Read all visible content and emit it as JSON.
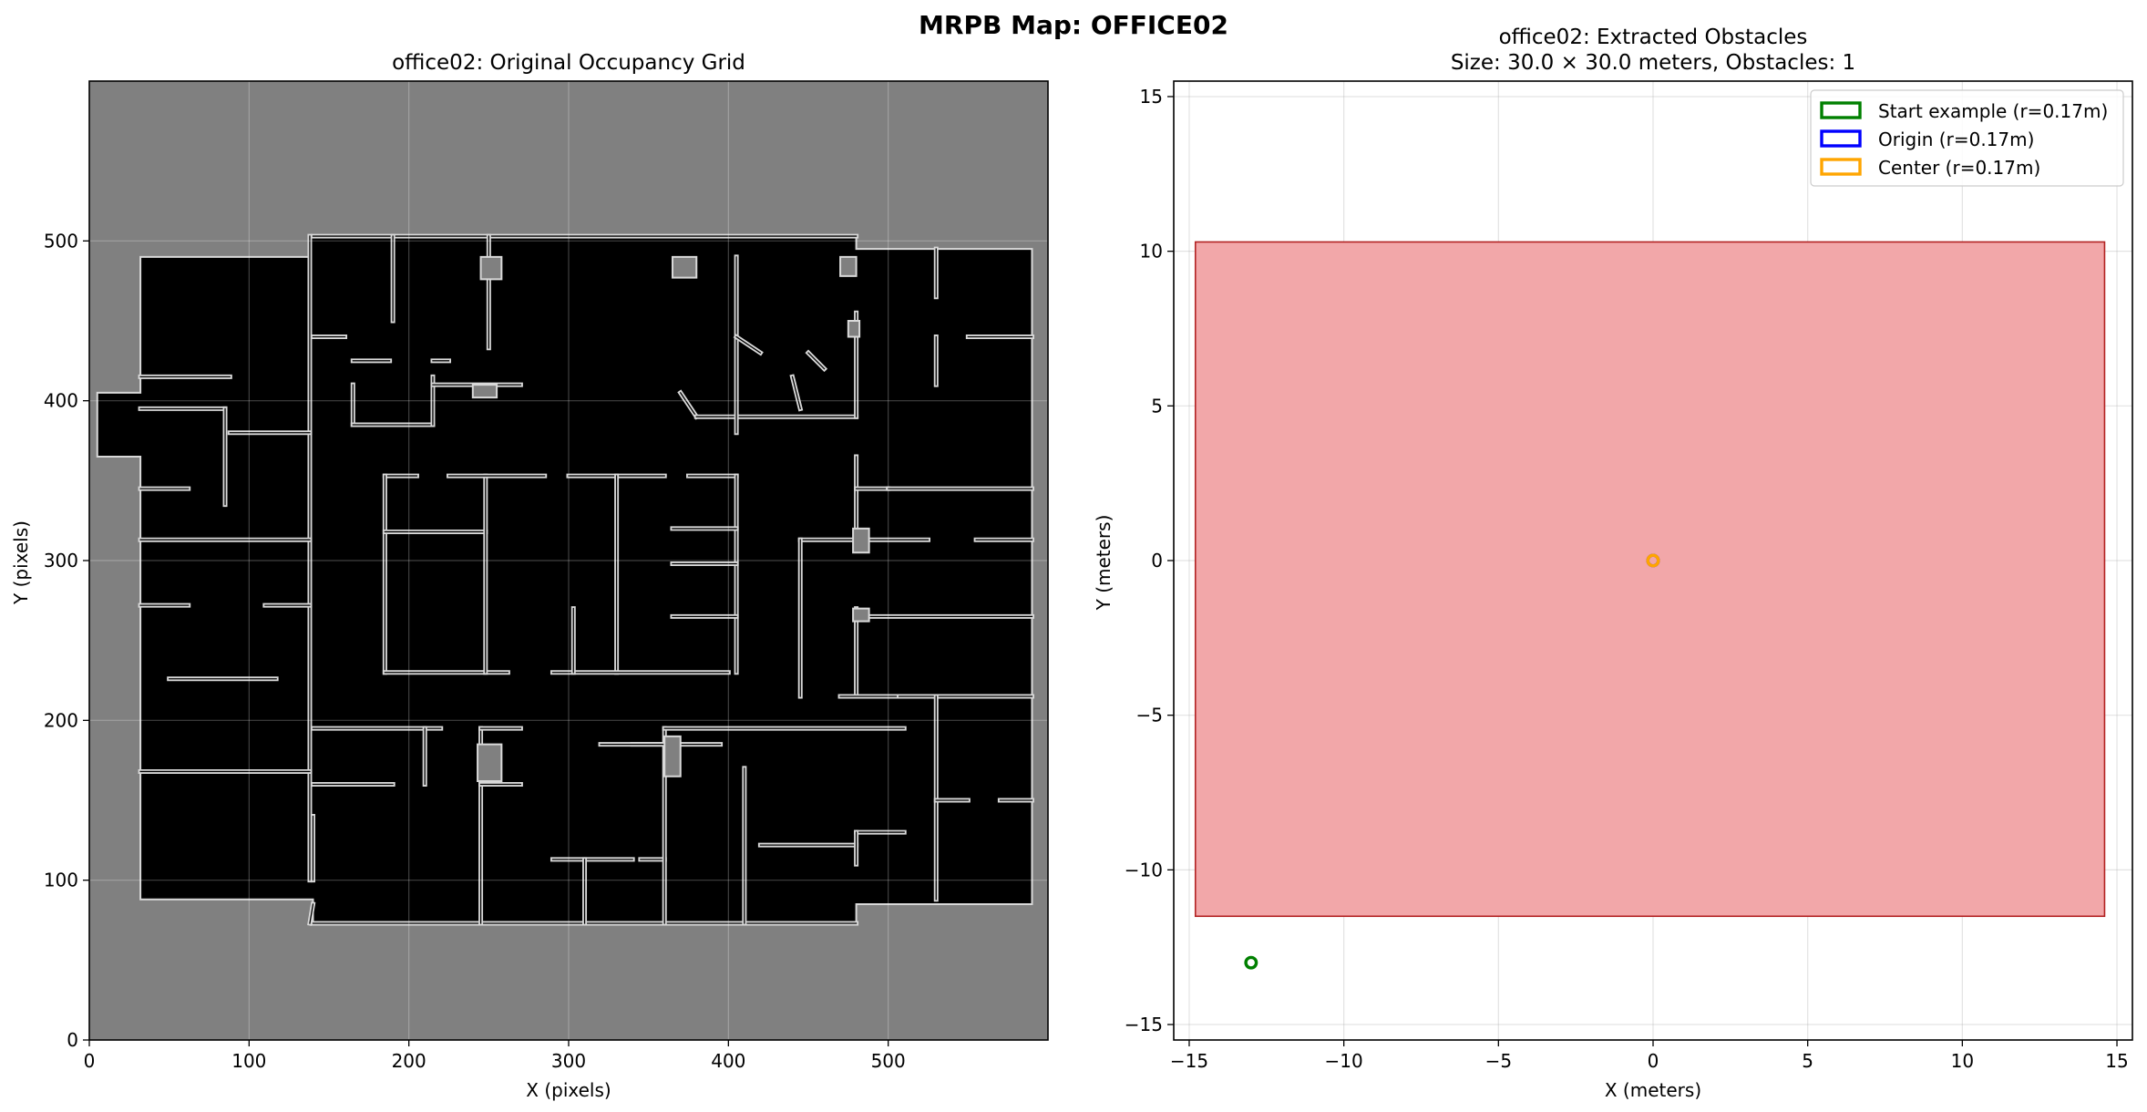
{
  "figure": {
    "suptitle": "MRPB Map: OFFICE02"
  },
  "colors": {
    "grid_unknown": "#808080",
    "grid_free": "#000000",
    "grid_wall": "#d9d9d9",
    "obstacle_fill": "#f2a7a9",
    "obstacle_edge": "#b22222",
    "start": "#008000",
    "origin": "#0000ff",
    "center": "#ffa500"
  },
  "chart_data": [
    {
      "type": "heatmap",
      "title": "office02: Original Occupancy Grid",
      "xlabel": "X (pixels)",
      "ylabel": "Y (pixels)",
      "xlim": [
        0,
        600
      ],
      "ylim": [
        0,
        600
      ],
      "xticks": [
        0,
        100,
        200,
        300,
        400,
        500
      ],
      "yticks": [
        0,
        100,
        200,
        300,
        400,
        500
      ],
      "grid": true,
      "free_space_outline": [
        [
          32,
          490
        ],
        [
          32,
          405
        ],
        [
          5,
          405
        ],
        [
          5,
          365
        ],
        [
          32,
          365
        ],
        [
          32,
          88
        ],
        [
          140,
          88
        ],
        [
          140,
          73
        ],
        [
          480,
          73
        ],
        [
          480,
          85
        ],
        [
          590,
          85
        ],
        [
          590,
          495
        ],
        [
          480,
          495
        ],
        [
          480,
          503
        ],
        [
          138,
          503
        ],
        [
          138,
          490
        ]
      ],
      "walls": [
        [
          [
            138,
            100
          ],
          [
            138,
            503
          ]
        ],
        [
          [
            140,
            503
          ],
          [
            480,
            503
          ]
        ],
        [
          [
            32,
            395
          ],
          [
            85,
            395
          ]
        ],
        [
          [
            32,
            415
          ],
          [
            88,
            415
          ]
        ],
        [
          [
            85,
            395
          ],
          [
            85,
            335
          ]
        ],
        [
          [
            88,
            380
          ],
          [
            138,
            380
          ]
        ],
        [
          [
            32,
            345
          ],
          [
            62,
            345
          ]
        ],
        [
          [
            32,
            313
          ],
          [
            138,
            313
          ]
        ],
        [
          [
            32,
            272
          ],
          [
            62,
            272
          ]
        ],
        [
          [
            110,
            272
          ],
          [
            138,
            272
          ]
        ],
        [
          [
            50,
            226
          ],
          [
            117,
            226
          ]
        ],
        [
          [
            32,
            168
          ],
          [
            138,
            168
          ]
        ],
        [
          [
            140,
            160
          ],
          [
            190,
            160
          ]
        ],
        [
          [
            140,
            195
          ],
          [
            220,
            195
          ]
        ],
        [
          [
            210,
            195
          ],
          [
            210,
            160
          ]
        ],
        [
          [
            190,
            450
          ],
          [
            190,
            503
          ]
        ],
        [
          [
            140,
            440
          ],
          [
            160,
            440
          ]
        ],
        [
          [
            165,
            410
          ],
          [
            165,
            385
          ]
        ],
        [
          [
            165,
            425
          ],
          [
            188,
            425
          ]
        ],
        [
          [
            165,
            385
          ],
          [
            215,
            385
          ]
        ],
        [
          [
            215,
            425
          ],
          [
            225,
            425
          ]
        ],
        [
          [
            215,
            385
          ],
          [
            215,
            415
          ]
        ],
        [
          [
            215,
            410
          ],
          [
            270,
            410
          ]
        ],
        [
          [
            250,
            433
          ],
          [
            250,
            503
          ]
        ],
        [
          [
            185,
            353
          ],
          [
            205,
            353
          ]
        ],
        [
          [
            185,
            353
          ],
          [
            185,
            230
          ]
        ],
        [
          [
            185,
            230
          ],
          [
            262,
            230
          ]
        ],
        [
          [
            185,
            318
          ],
          [
            248,
            318
          ]
        ],
        [
          [
            248,
            353
          ],
          [
            248,
            230
          ]
        ],
        [
          [
            225,
            353
          ],
          [
            285,
            353
          ]
        ],
        [
          [
            300,
            353
          ],
          [
            360,
            353
          ]
        ],
        [
          [
            330,
            353
          ],
          [
            330,
            230
          ]
        ],
        [
          [
            290,
            230
          ],
          [
            400,
            230
          ]
        ],
        [
          [
            375,
            353
          ],
          [
            405,
            353
          ]
        ],
        [
          [
            405,
            353
          ],
          [
            405,
            230
          ]
        ],
        [
          [
            365,
            320
          ],
          [
            405,
            320
          ]
        ],
        [
          [
            365,
            298
          ],
          [
            405,
            298
          ]
        ],
        [
          [
            365,
            265
          ],
          [
            405,
            265
          ]
        ],
        [
          [
            303,
            270
          ],
          [
            303,
            230
          ]
        ],
        [
          [
            370,
            405
          ],
          [
            380,
            390
          ]
        ],
        [
          [
            380,
            390
          ],
          [
            480,
            390
          ]
        ],
        [
          [
            405,
            490
          ],
          [
            405,
            380
          ]
        ],
        [
          [
            405,
            440
          ],
          [
            420,
            430
          ]
        ],
        [
          [
            450,
            430
          ],
          [
            460,
            420
          ]
        ],
        [
          [
            440,
            415
          ],
          [
            445,
            395
          ]
        ],
        [
          [
            480,
            455
          ],
          [
            480,
            390
          ]
        ],
        [
          [
            480,
            365
          ],
          [
            480,
            310
          ]
        ],
        [
          [
            480,
            345
          ],
          [
            500,
            345
          ]
        ],
        [
          [
            445,
            313
          ],
          [
            525,
            313
          ]
        ],
        [
          [
            445,
            313
          ],
          [
            445,
            215
          ]
        ],
        [
          [
            480,
            270
          ],
          [
            480,
            215
          ]
        ],
        [
          [
            480,
            265
          ],
          [
            590,
            265
          ]
        ],
        [
          [
            500,
            345
          ],
          [
            590,
            345
          ]
        ],
        [
          [
            555,
            313
          ],
          [
            590,
            313
          ]
        ],
        [
          [
            480,
            215
          ],
          [
            590,
            215
          ]
        ],
        [
          [
            470,
            215
          ],
          [
            505,
            215
          ]
        ],
        [
          [
            530,
            215
          ],
          [
            530,
            88
          ]
        ],
        [
          [
            530,
            150
          ],
          [
            550,
            150
          ]
        ],
        [
          [
            570,
            150
          ],
          [
            590,
            150
          ]
        ],
        [
          [
            530,
            440
          ],
          [
            530,
            410
          ]
        ],
        [
          [
            550,
            440
          ],
          [
            590,
            440
          ]
        ],
        [
          [
            530,
            495
          ],
          [
            530,
            465
          ]
        ],
        [
          [
            140,
            85
          ],
          [
            138,
            73
          ]
        ],
        [
          [
            140,
            73
          ],
          [
            480,
            73
          ]
        ],
        [
          [
            245,
            195
          ],
          [
            245,
            73
          ]
        ],
        [
          [
            245,
            160
          ],
          [
            270,
            160
          ]
        ],
        [
          [
            270,
            195
          ],
          [
            245,
            195
          ]
        ],
        [
          [
            290,
            113
          ],
          [
            340,
            113
          ]
        ],
        [
          [
            310,
            113
          ],
          [
            310,
            73
          ]
        ],
        [
          [
            345,
            113
          ],
          [
            360,
            113
          ]
        ],
        [
          [
            360,
            195
          ],
          [
            360,
            73
          ]
        ],
        [
          [
            360,
            195
          ],
          [
            510,
            195
          ]
        ],
        [
          [
            410,
            170
          ],
          [
            410,
            73
          ]
        ],
        [
          [
            420,
            122
          ],
          [
            480,
            122
          ]
        ],
        [
          [
            480,
            130
          ],
          [
            510,
            130
          ]
        ],
        [
          [
            480,
            130
          ],
          [
            480,
            110
          ]
        ],
        [
          [
            360,
            185
          ],
          [
            340,
            185
          ]
        ],
        [
          [
            320,
            185
          ],
          [
            395,
            185
          ]
        ],
        [
          [
            140,
            140
          ],
          [
            140,
            100
          ]
        ]
      ],
      "blocks": [
        [
          [
            243,
            185
          ],
          [
            258,
            185
          ],
          [
            258,
            162
          ],
          [
            243,
            162
          ]
        ],
        [
          [
            360,
            190
          ],
          [
            370,
            190
          ],
          [
            370,
            165
          ],
          [
            360,
            165
          ]
        ],
        [
          [
            240,
            410
          ],
          [
            255,
            410
          ],
          [
            255,
            402
          ],
          [
            240,
            402
          ]
        ],
        [
          [
            365,
            490
          ],
          [
            380,
            490
          ],
          [
            380,
            477
          ],
          [
            365,
            477
          ]
        ],
        [
          [
            245,
            490
          ],
          [
            258,
            490
          ],
          [
            258,
            476
          ],
          [
            245,
            476
          ]
        ],
        [
          [
            470,
            490
          ],
          [
            480,
            490
          ],
          [
            480,
            478
          ],
          [
            470,
            478
          ]
        ],
        [
          [
            475,
            450
          ],
          [
            482,
            450
          ],
          [
            482,
            440
          ],
          [
            475,
            440
          ]
        ],
        [
          [
            478,
            320
          ],
          [
            488,
            320
          ],
          [
            488,
            305
          ],
          [
            478,
            305
          ]
        ],
        [
          [
            478,
            270
          ],
          [
            488,
            270
          ],
          [
            488,
            262
          ],
          [
            478,
            262
          ]
        ]
      ]
    },
    {
      "type": "scatter",
      "title": "office02: Extracted Obstacles",
      "subtitle": "Size: 30.0 × 30.0 meters, Obstacles: 1",
      "xlabel": "X (meters)",
      "ylabel": "Y (meters)",
      "xlim": [
        -15.5,
        15.5
      ],
      "ylim": [
        -15.5,
        15.5
      ],
      "xticks": [
        -15,
        -10,
        -5,
        0,
        5,
        10,
        15
      ],
      "yticks": [
        -15,
        -10,
        -5,
        0,
        5,
        10,
        15
      ],
      "xtick_labels": [
        "−15",
        "−10",
        "−5",
        "0",
        "5",
        "10",
        "15"
      ],
      "ytick_labels": [
        "−15",
        "−10",
        "−5",
        "0",
        "5",
        "10",
        "15"
      ],
      "grid": true,
      "legend_position": "top-right",
      "obstacles": [
        {
          "x_min": -14.8,
          "x_max": 14.6,
          "y_min": -11.5,
          "y_max": 10.3
        }
      ],
      "series": [
        {
          "name": "Start example (r=0.17m)",
          "x": -13.0,
          "y": -13.0,
          "radius": 0.17,
          "color": "#008000"
        },
        {
          "name": "Origin (r=0.17m)",
          "x": 0.0,
          "y": 0.0,
          "radius": 0.17,
          "color": "#0000ff"
        },
        {
          "name": "Center (r=0.17m)",
          "x": 0.0,
          "y": 0.0,
          "radius": 0.17,
          "color": "#ffa500"
        }
      ]
    }
  ]
}
